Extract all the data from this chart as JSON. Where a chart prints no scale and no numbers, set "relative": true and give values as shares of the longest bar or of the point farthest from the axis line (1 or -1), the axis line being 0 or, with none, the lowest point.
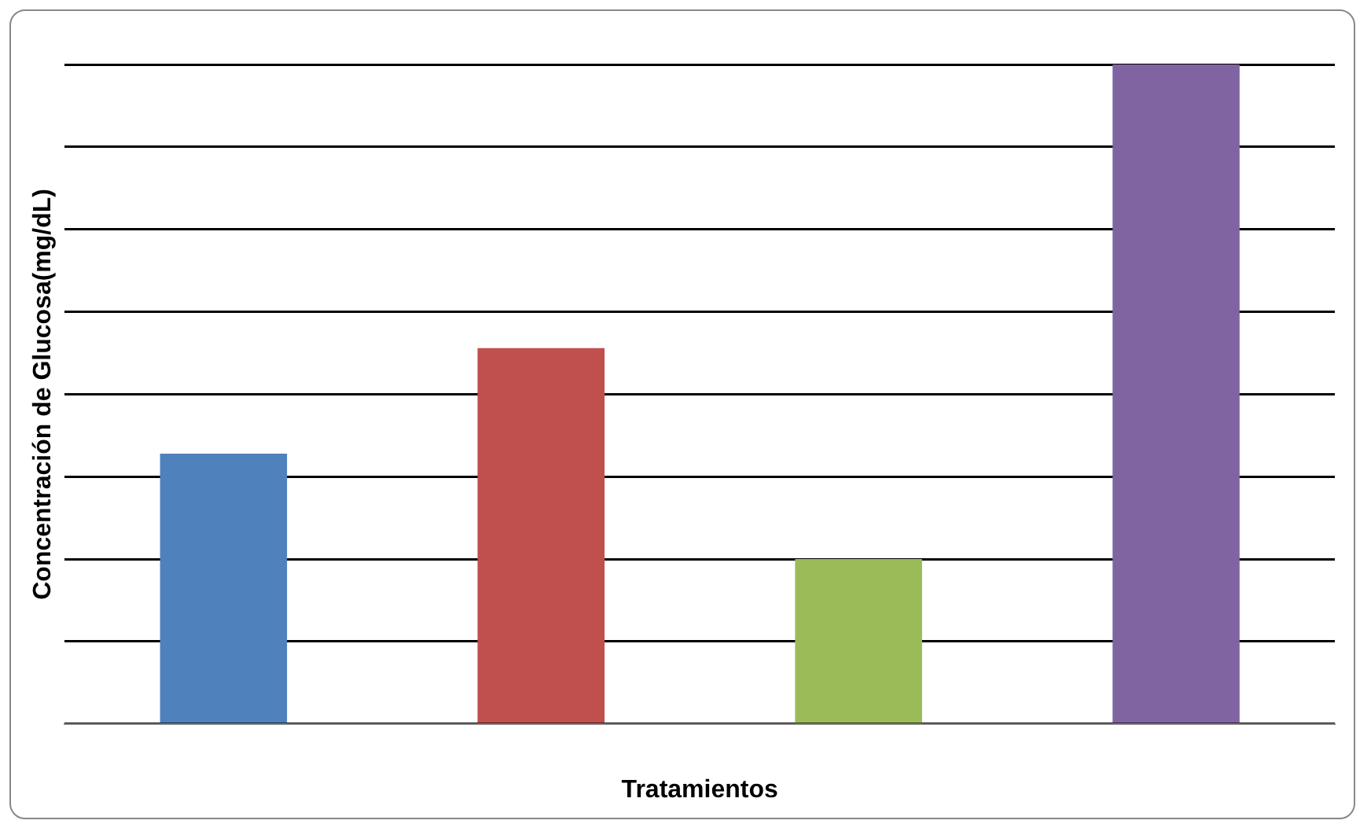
{
  "chart_data": {
    "type": "bar",
    "xlabel": "Tratamientos",
    "ylabel": "Concentración de Glucosa(mg/dL)",
    "categories": [
      null,
      null,
      null,
      null
    ],
    "values": [
      0.41,
      0.57,
      0.25,
      1
    ],
    "colors": [
      "#4f81bd",
      "#c0504d",
      "#9bbb59",
      "#8064a2"
    ],
    "relative": true,
    "grid": "y",
    "legend": false
  }
}
